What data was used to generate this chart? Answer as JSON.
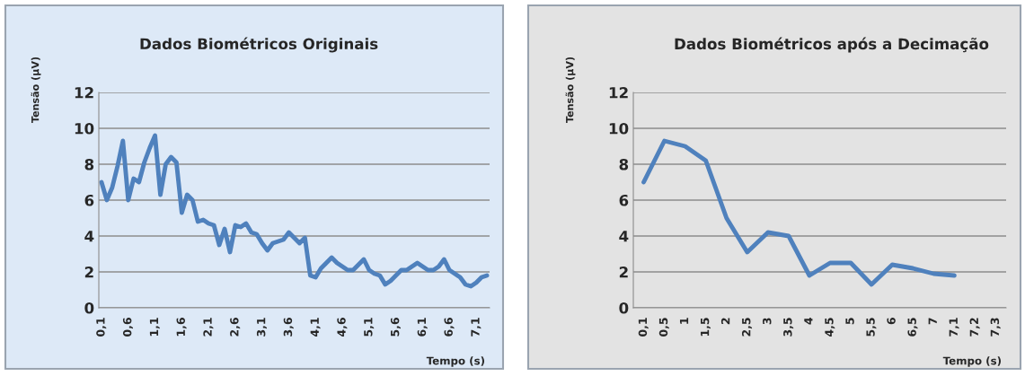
{
  "chart_data": [
    {
      "type": "line",
      "title": "Dados Biométricos Originais",
      "ylabel": "Tensão (µV)",
      "xlabel": "Tempo (s)",
      "categories": [
        "0,1",
        null,
        null,
        null,
        null,
        "0,6",
        null,
        null,
        null,
        null,
        "1,1",
        null,
        null,
        null,
        null,
        "1,6",
        null,
        null,
        null,
        null,
        "2,1",
        null,
        null,
        null,
        null,
        "2,6",
        null,
        null,
        null,
        null,
        "3,1",
        null,
        null,
        null,
        null,
        "3,6",
        null,
        null,
        null,
        null,
        "4,1",
        null,
        null,
        null,
        null,
        "4,6",
        null,
        null,
        null,
        null,
        "5,1",
        null,
        null,
        null,
        null,
        "5,6",
        null,
        null,
        null,
        null,
        "6,1",
        null,
        null,
        null,
        null,
        "6,6",
        null,
        null,
        null,
        null,
        "7,1",
        null,
        null
      ],
      "series": [
        {
          "color": "#4f81bd",
          "values": [
            7.0,
            6.0,
            6.7,
            7.9,
            9.3,
            6.0,
            7.2,
            7.0,
            8.1,
            8.9,
            9.6,
            6.3,
            8.0,
            8.4,
            8.1,
            5.3,
            6.3,
            6.0,
            4.8,
            4.9,
            4.7,
            4.6,
            3.5,
            4.4,
            3.1,
            4.6,
            4.5,
            4.7,
            4.2,
            4.1,
            3.6,
            3.2,
            3.6,
            3.7,
            3.8,
            4.2,
            3.9,
            3.6,
            3.9,
            1.8,
            1.7,
            2.2,
            2.5,
            2.8,
            2.5,
            2.3,
            2.1,
            2.1,
            2.4,
            2.7,
            2.1,
            1.9,
            1.8,
            1.3,
            1.5,
            1.8,
            2.1,
            2.1,
            2.3,
            2.5,
            2.3,
            2.1,
            2.1,
            2.3,
            2.7,
            2.1,
            1.9,
            1.7,
            1.3,
            1.2,
            1.4,
            1.7,
            1.8
          ]
        }
      ],
      "ylim": [
        0,
        12
      ],
      "yticks": [
        0,
        2,
        4,
        6,
        8,
        10,
        12
      ],
      "grid": "y"
    },
    {
      "type": "line",
      "title": "Dados Biométricos após a Decimação",
      "ylabel": "Tensão (µV)",
      "xlabel": "Tempo (s)",
      "categories": [
        "0,1",
        "0,5",
        "1",
        "1,5",
        "2",
        "2,5",
        "3",
        "3,5",
        "4",
        "4,5",
        "5",
        "5,5",
        "6",
        "6,5",
        "7",
        "7,1",
        "7,2",
        "7,3"
      ],
      "series": [
        {
          "color": "#4f81bd",
          "values": [
            7.0,
            9.3,
            9.0,
            8.2,
            5.0,
            3.1,
            4.2,
            4.0,
            1.8,
            2.5,
            2.5,
            1.3,
            2.4,
            2.2,
            1.9,
            1.8,
            null,
            null
          ]
        }
      ],
      "ylim": [
        0,
        12
      ],
      "yticks": [
        0,
        2,
        4,
        6,
        8,
        10,
        12
      ],
      "grid": "y"
    }
  ]
}
